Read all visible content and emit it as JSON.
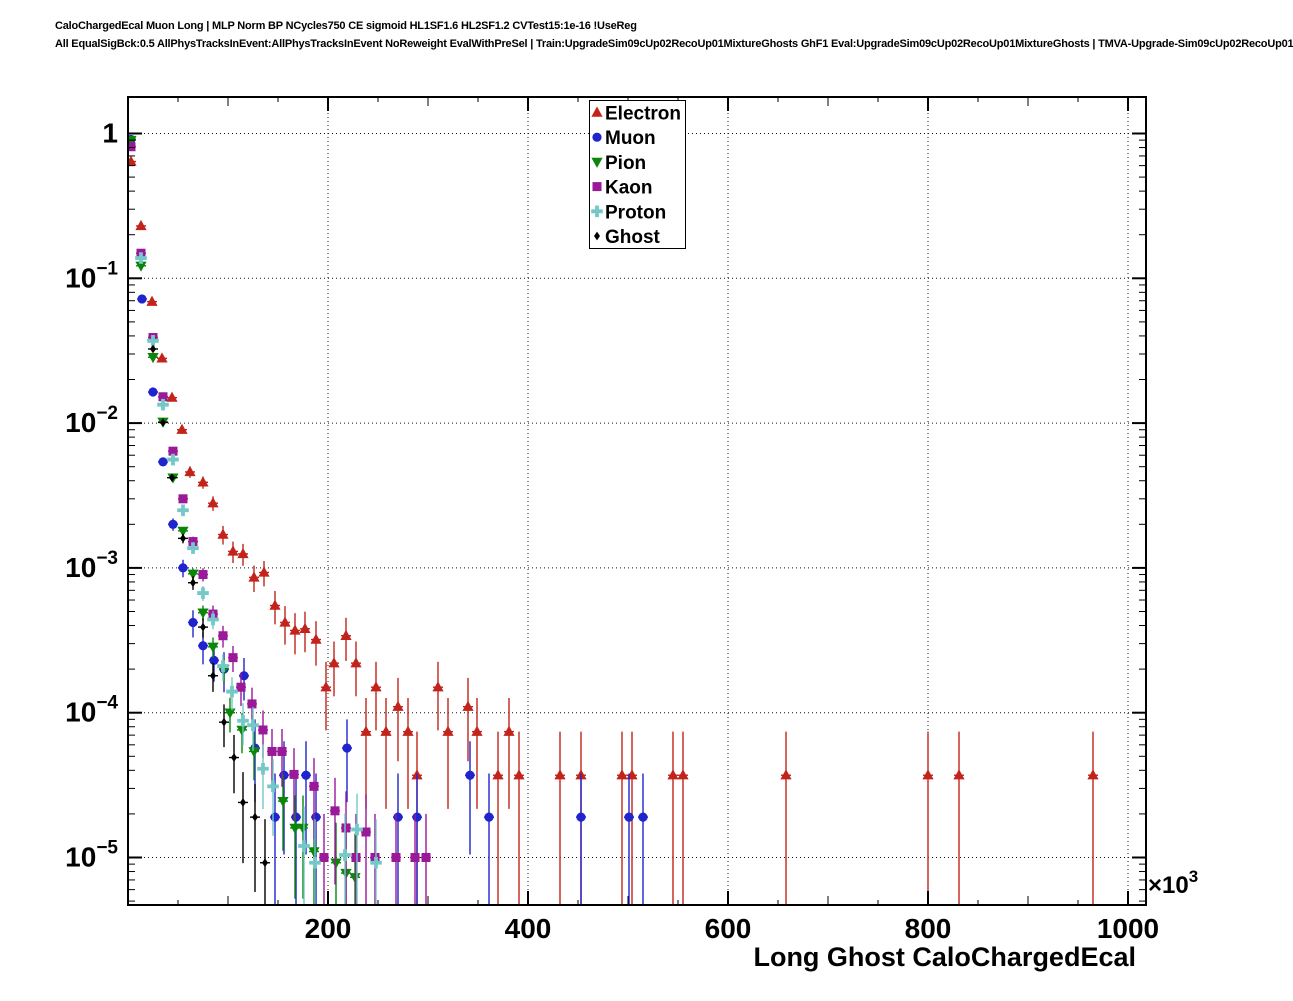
{
  "header": {
    "line1": "CaloChargedEcal Muon Long | MLP Norm BP NCycles750 CE sigmoid HL1SF1.6 HL2SF1.2 CVTest15:1e-16 !UseReg",
    "line2": "All EqualSigBck:0.5 AllPhysTracksInEvent:AllPhysTracksInEvent NoReweight EvalWithPreSel | Train:UpgradeSim09cUp02RecoUp01MixtureGhosts GhF1 Eval:UpgradeSim09cUp02RecoUp01MixtureGhosts | TMVA-Upgrade-Sim09cUp02RecoUp01"
  },
  "axes": {
    "x": {
      "label": "Long Ghost CaloChargedEcal",
      "ticks": [
        200,
        400,
        600,
        800,
        1000
      ],
      "multiplier_mant": "×10",
      "multiplier_exp": "3",
      "min": 0,
      "max": 1016,
      "grid_at": [
        200,
        400,
        600,
        800,
        1000
      ]
    },
    "y": {
      "scale": "log",
      "labels": [
        {
          "mant": "1",
          "exp": "",
          "value": 1
        },
        {
          "mant": "10",
          "exp": "−1",
          "value": 0.1
        },
        {
          "mant": "10",
          "exp": "−2",
          "value": 0.01
        },
        {
          "mant": "10",
          "exp": "−3",
          "value": 0.001
        },
        {
          "mant": "10",
          "exp": "−4",
          "value": 0.0001
        },
        {
          "mant": "10",
          "exp": "−5",
          "value": 1e-05
        }
      ],
      "min": 4.7e-06,
      "max": 1.79
    }
  },
  "legend": {
    "entries": [
      {
        "label": "Electron",
        "marker": "triangle-up",
        "color": "#c2241c"
      },
      {
        "label": "Muon",
        "marker": "circle",
        "color": "#2024cc"
      },
      {
        "label": "Pion",
        "marker": "triangle-down",
        "color": "#0b860b"
      },
      {
        "label": "Kaon",
        "marker": "square",
        "color": "#991999"
      },
      {
        "label": "Proton",
        "marker": "cross",
        "color": "#74c8c8"
      },
      {
        "label": "Ghost",
        "marker": "diamond-small",
        "color": "#000000"
      }
    ]
  },
  "chart_data": {
    "type": "scatter",
    "title": "",
    "xlabel": "Long Ghost CaloChargedEcal",
    "x_unit": "×10^3",
    "ylog": true,
    "xlim": [
      0,
      1016
    ],
    "ylim": [
      4.7e-06,
      1.79
    ],
    "grid": "dotted",
    "legend_position": "top-center",
    "series": [
      {
        "name": "Electron",
        "color": "#c2241c",
        "marker": "triangle-up",
        "entry_weight": 3.7e-05,
        "points": [
          [
            3,
            0.64
          ],
          [
            13,
            0.23
          ],
          [
            24,
            0.069
          ],
          [
            34,
            0.028
          ],
          [
            44,
            0.015
          ],
          [
            54,
            0.009
          ],
          [
            62,
            0.0046
          ],
          [
            75,
            0.0039
          ],
          [
            85,
            0.0028
          ],
          [
            95,
            0.0017
          ],
          [
            105,
            0.0013
          ],
          [
            115,
            0.00125
          ],
          [
            126,
            0.00086
          ],
          [
            136,
            0.00093
          ],
          [
            147,
            0.00055
          ],
          [
            157,
            0.00042
          ],
          [
            167,
            0.00037
          ],
          [
            177,
            0.00038
          ],
          [
            188,
            0.00032
          ],
          [
            198,
            0.00015
          ],
          [
            206,
            0.00022
          ],
          [
            218,
            0.00034
          ],
          [
            228,
            0.00022
          ],
          [
            238,
            7.4e-05
          ],
          [
            248,
            0.00015
          ],
          [
            258,
            7.4e-05
          ],
          [
            270,
            0.00011
          ],
          [
            280,
            7.4e-05
          ],
          [
            289,
            3.7e-05
          ],
          [
            310,
            0.00015
          ],
          [
            320,
            7.4e-05
          ],
          [
            340,
            0.00011
          ],
          [
            349,
            7.4e-05
          ],
          [
            370,
            3.7e-05
          ],
          [
            381,
            7.4e-05
          ],
          [
            391,
            3.7e-05
          ],
          [
            432,
            3.7e-05
          ],
          [
            453,
            3.7e-05
          ],
          [
            494,
            3.7e-05
          ],
          [
            504,
            3.7e-05
          ],
          [
            545,
            3.7e-05
          ],
          [
            555,
            3.7e-05
          ],
          [
            658,
            3.7e-05
          ],
          [
            800,
            3.7e-05
          ],
          [
            831,
            3.7e-05
          ],
          [
            965,
            3.7e-05
          ]
        ]
      },
      {
        "name": "Muon",
        "color": "#2024cc",
        "marker": "circle",
        "entry_weight": 1.9e-05,
        "points": [
          [
            3,
            0.91
          ],
          [
            14,
            0.072
          ],
          [
            25,
            0.0164
          ],
          [
            35,
            0.0054
          ],
          [
            45,
            0.002
          ],
          [
            55,
            0.001
          ],
          [
            65,
            0.00042
          ],
          [
            75,
            0.00029
          ],
          [
            86,
            0.00023
          ],
          [
            96,
            0.0002
          ],
          [
            116,
            0.00018
          ],
          [
            127,
            5.7e-05
          ],
          [
            147,
            1.9e-05
          ],
          [
            156,
            3.7e-05
          ],
          [
            168,
            1.9e-05
          ],
          [
            178,
            3.7e-05
          ],
          [
            188,
            1.9e-05
          ],
          [
            219,
            5.7e-05
          ],
          [
            270,
            1.9e-05
          ],
          [
            289,
            1.9e-05
          ],
          [
            342,
            3.7e-05
          ],
          [
            361,
            1.9e-05
          ],
          [
            453,
            1.9e-05
          ],
          [
            501,
            1.9e-05
          ],
          [
            515,
            1.9e-05
          ]
        ]
      },
      {
        "name": "Pion",
        "color": "#0b860b",
        "marker": "triangle-down",
        "entry_weight": 7.3e-06,
        "points": [
          [
            3,
            0.9
          ],
          [
            13,
            0.122
          ],
          [
            25,
            0.0285
          ],
          [
            35,
            0.0102
          ],
          [
            45,
            0.0042
          ],
          [
            55,
            0.0018
          ],
          [
            65,
            0.00091
          ],
          [
            75,
            0.00049
          ],
          [
            85,
            0.000285
          ],
          [
            96,
            0.0002
          ],
          [
            102,
            0.0001
          ],
          [
            114,
            7.6e-05
          ],
          [
            126,
            5.4e-05
          ],
          [
            155,
            2.45e-05
          ],
          [
            167,
            1.6e-05
          ],
          [
            175,
            1.6e-05
          ],
          [
            186,
            1.1e-05
          ],
          [
            208,
            9.2e-06
          ],
          [
            218,
            7.8e-06
          ],
          [
            227,
            7.3e-06
          ]
        ]
      },
      {
        "name": "Kaon",
        "color": "#991999",
        "marker": "square",
        "entry_weight": 1e-05,
        "points": [
          [
            3,
            0.81
          ],
          [
            13,
            0.149
          ],
          [
            25,
            0.039
          ],
          [
            35,
            0.0152
          ],
          [
            45,
            0.0064
          ],
          [
            55,
            0.003
          ],
          [
            65,
            0.00152
          ],
          [
            75,
            0.0009
          ],
          [
            85,
            0.00048
          ],
          [
            95,
            0.00034
          ],
          [
            105,
            0.00024
          ],
          [
            113,
            0.00015
          ],
          [
            124,
            0.000115
          ],
          [
            135,
            7.6e-05
          ],
          [
            144,
            5.4e-05
          ],
          [
            154,
            5.4e-05
          ],
          [
            166,
            3.75e-05
          ],
          [
            186,
            3.1e-05
          ],
          [
            196,
            1e-05
          ],
          [
            207,
            2.1e-05
          ],
          [
            218,
            1.6e-05
          ],
          [
            228,
            1e-05
          ],
          [
            238,
            1.5e-05
          ],
          [
            247,
            1e-05
          ],
          [
            268,
            1e-05
          ],
          [
            287,
            1e-05
          ],
          [
            298,
            1e-05
          ]
        ]
      },
      {
        "name": "Proton",
        "color": "#74c8c8",
        "marker": "cross",
        "entry_weight": 9.2e-06,
        "points": [
          [
            13,
            0.138
          ],
          [
            25,
            0.037
          ],
          [
            35,
            0.0134
          ],
          [
            45,
            0.0056
          ],
          [
            55,
            0.0025
          ],
          [
            65,
            0.00137
          ],
          [
            75,
            0.00067
          ],
          [
            85,
            0.00044
          ],
          [
            95,
            0.00021
          ],
          [
            104,
            0.00014
          ],
          [
            115,
            8.8e-05
          ],
          [
            125,
            8.2e-05
          ],
          [
            135,
            4.1e-05
          ],
          [
            145,
            3.1e-05
          ],
          [
            176,
            1.2e-05
          ],
          [
            187,
            9.2e-06
          ],
          [
            217,
            1.04e-05
          ],
          [
            229,
            1.56e-05
          ],
          [
            248,
            9.2e-06
          ]
        ]
      },
      {
        "name": "Ghost",
        "color": "#000000",
        "marker": "diamond-small",
        "entry_weight": 9.2e-06,
        "points": [
          [
            25,
            0.0325
          ],
          [
            35,
            0.0101
          ],
          [
            44,
            0.0042
          ],
          [
            55,
            0.0016
          ],
          [
            65,
            0.00079
          ],
          [
            75,
            0.00039
          ],
          [
            85,
            0.00018
          ],
          [
            96,
            8.6e-05
          ],
          [
            106,
            4.9e-05
          ],
          [
            115,
            2.4e-05
          ],
          [
            127,
            1.9e-05
          ],
          [
            137,
            9.2e-06
          ]
        ]
      }
    ]
  }
}
